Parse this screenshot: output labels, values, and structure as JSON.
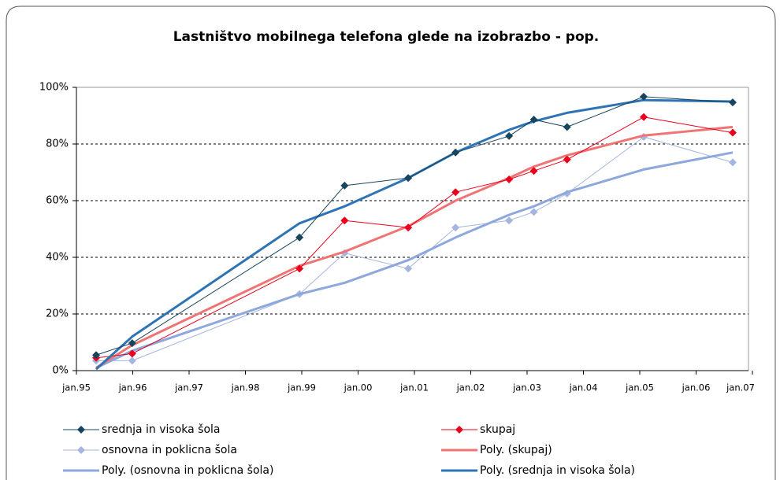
{
  "chart_data": {
    "type": "line",
    "title": "Lastništvo mobilnega telefona glede na izobrazbo - pop.",
    "x": [
      1995.35,
      1995.99,
      1998.96,
      1999.76,
      2000.89,
      2001.73,
      2002.68,
      2003.12,
      2003.71,
      2005.07,
      2006.65
    ],
    "xlim": [
      1995,
      2007
    ],
    "xticks": [
      {
        "value": 1995,
        "label": "jan.95"
      },
      {
        "value": 1996,
        "label": "jan.96"
      },
      {
        "value": 1997,
        "label": "jan.97"
      },
      {
        "value": 1998,
        "label": "jan.98"
      },
      {
        "value": 1999,
        "label": "jan.99"
      },
      {
        "value": 2000,
        "label": "jan.00"
      },
      {
        "value": 2001,
        "label": "jan.01"
      },
      {
        "value": 2002,
        "label": "jan.02"
      },
      {
        "value": 2003,
        "label": "jan.03"
      },
      {
        "value": 2004,
        "label": "jan.04"
      },
      {
        "value": 2005,
        "label": "jan.05"
      },
      {
        "value": 2006,
        "label": "jan.06"
      },
      {
        "value": 2007,
        "label": "jan.07"
      }
    ],
    "ylim": [
      0,
      100
    ],
    "yticks": [
      {
        "value": 0,
        "label": "0%"
      },
      {
        "value": 20,
        "label": "20%"
      },
      {
        "value": 40,
        "label": "40%"
      },
      {
        "value": 60,
        "label": "60%"
      },
      {
        "value": 80,
        "label": "80%"
      },
      {
        "value": 100,
        "label": "100%"
      }
    ],
    "grid": true,
    "series": [
      {
        "name": "srednja in visoka šola",
        "color": "#17455e",
        "marker": "diamond",
        "width": 1,
        "values": [
          5.5,
          9.7,
          47,
          65.3,
          68,
          77,
          82.8,
          88.6,
          86,
          96.7,
          94.7
        ]
      },
      {
        "name": "skupaj",
        "color": "#e8001c",
        "marker": "diamond",
        "width": 1,
        "values": [
          4.5,
          6,
          36,
          53,
          50.5,
          63,
          67.5,
          70.5,
          74.5,
          89.5,
          84
        ]
      },
      {
        "name": "osnovna in poklicna šola",
        "color": "#a4b6e0",
        "marker": "diamond",
        "width": 1,
        "values": [
          3.5,
          3.5,
          27,
          41.5,
          36,
          50.5,
          53,
          56,
          62.5,
          82.5,
          73.5
        ]
      },
      {
        "name": "Poly. (skupaj)",
        "color": "#f07474",
        "width": 3,
        "values": [
          1,
          9,
          37,
          42,
          51,
          60,
          68,
          72,
          76,
          83,
          86
        ]
      },
      {
        "name": "Poly. (osnovna in poklicna šola)",
        "color": "#8ea7dc",
        "width": 3,
        "values": [
          1,
          7,
          27,
          31,
          39,
          47,
          55,
          58,
          63,
          71,
          77
        ]
      },
      {
        "name": "Poly. (srednja in visoka šola)",
        "color": "#2e74b5",
        "width": 3,
        "values": [
          0.5,
          12,
          52,
          58,
          68,
          77,
          85,
          88,
          91,
          95.5,
          95
        ]
      }
    ]
  }
}
